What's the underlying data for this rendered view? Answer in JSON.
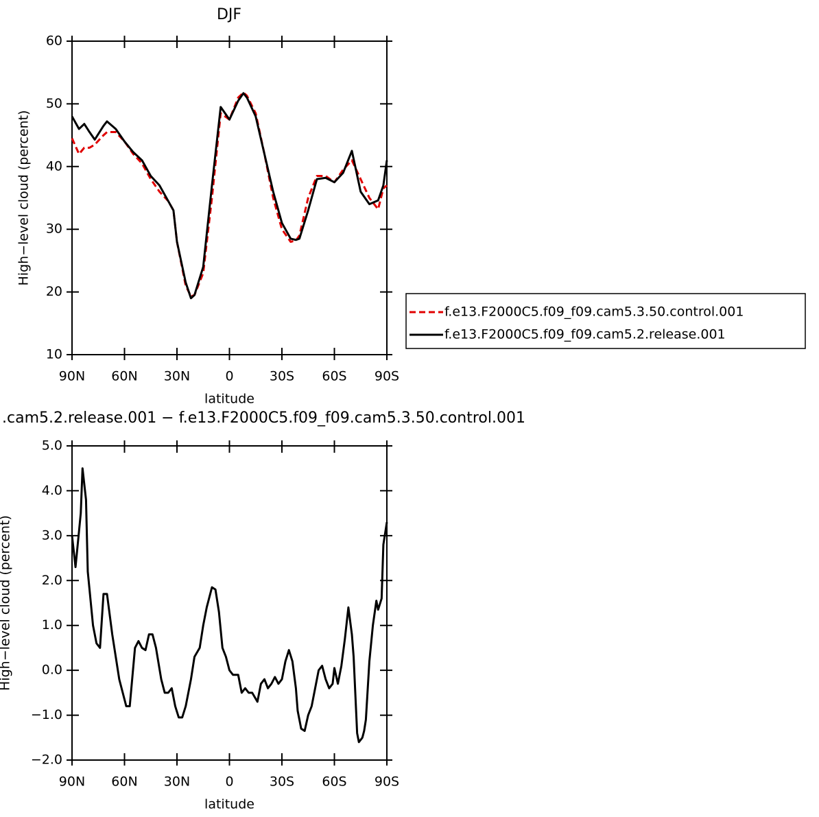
{
  "chart_data": [
    {
      "type": "line",
      "title": "DJF",
      "y_label": "High−level cloud (percent)",
      "x_label": "latitude",
      "xlim": [
        90,
        -90
      ],
      "xticks": [
        {
          "value": 90,
          "label": "90N"
        },
        {
          "value": 60,
          "label": "60N"
        },
        {
          "value": 30,
          "label": "30N"
        },
        0,
        {
          "value": -30,
          "label": "30S"
        },
        {
          "value": -60,
          "label": "60S"
        },
        {
          "value": -90,
          "label": "90S"
        }
      ],
      "ylim": [
        10,
        60
      ],
      "yticks": [
        10,
        20,
        30,
        40,
        50,
        60
      ],
      "legend": "right",
      "x": [
        90,
        86,
        83,
        80,
        77,
        72,
        70,
        65,
        60,
        55,
        50,
        45,
        40,
        35,
        32,
        30,
        25,
        22,
        20,
        15,
        10,
        5,
        0,
        -5,
        -8,
        -10,
        -15,
        -20,
        -25,
        -30,
        -35,
        -38,
        -40,
        -45,
        -50,
        -55,
        -60,
        -65,
        -70,
        -75,
        -80,
        -85,
        -88,
        -90
      ],
      "series": [
        {
          "name": "f.e13.F2000C5.f09_f09.cam5.3.50.control.001",
          "color": "#e00000",
          "dashed": true,
          "values": [
            44.5,
            42,
            43,
            43,
            43.5,
            45,
            45.5,
            45.5,
            44,
            42,
            40.5,
            38,
            36,
            34.5,
            33,
            28,
            21,
            19.3,
            19.5,
            23,
            35,
            48.5,
            47.5,
            51,
            51.8,
            51.3,
            48.5,
            42,
            35,
            30,
            28,
            28.2,
            29,
            35,
            38.5,
            38.5,
            37.5,
            39.5,
            41,
            38,
            35,
            33.2,
            36.5,
            37
          ]
        },
        {
          "name": "f.e13.F2000C5.f09_f09.cam5.2.release.001",
          "color": "#000000",
          "dashed": false,
          "values": [
            48,
            46,
            46.8,
            45.5,
            44.3,
            46.5,
            47.2,
            46,
            44,
            42.3,
            41,
            38.5,
            37,
            34.5,
            33,
            28,
            21.5,
            19,
            19.5,
            24,
            37,
            49.5,
            47.5,
            50.5,
            51.7,
            51,
            48,
            42,
            36,
            31,
            28.5,
            28.3,
            28.5,
            33,
            38,
            38.2,
            37.5,
            39,
            42.5,
            36,
            34,
            34.6,
            37,
            41
          ]
        }
      ]
    },
    {
      "type": "line",
      "title": ".cam5.2.release.001 − f.e13.F2000C5.f09_f09.cam5.3.50.control.001",
      "y_label": "High−level cloud (percent)",
      "x_label": "latitude",
      "xlim": [
        90,
        -90
      ],
      "xticks": [
        {
          "value": 90,
          "label": "90N"
        },
        {
          "value": 60,
          "label": "60N"
        },
        {
          "value": 30,
          "label": "30N"
        },
        0,
        {
          "value": -30,
          "label": "30S"
        },
        {
          "value": -60,
          "label": "60S"
        },
        {
          "value": -90,
          "label": "90S"
        }
      ],
      "ylim": [
        -2,
        5
      ],
      "yticks": [
        {
          "value": -2,
          "label": "−2.0"
        },
        {
          "value": -1,
          "label": "−1.0"
        },
        {
          "value": 0,
          "label": "0.0"
        },
        {
          "value": 1,
          "label": "1.0"
        },
        {
          "value": 2,
          "label": "2.0"
        },
        {
          "value": 3,
          "label": "3.0"
        },
        {
          "value": 4,
          "label": "4.0"
        },
        {
          "value": 5,
          "label": "5.0"
        }
      ],
      "color": "#000000",
      "x": [
        90,
        88,
        85,
        84,
        82,
        81,
        78,
        76,
        74,
        72,
        70,
        67,
        65,
        63,
        61,
        59,
        57,
        54,
        52,
        50,
        48,
        46,
        44,
        42,
        39,
        37,
        35,
        33,
        31,
        29,
        27,
        25,
        22,
        20,
        17,
        15,
        13,
        10,
        8,
        6,
        4,
        2,
        0,
        -2,
        -5,
        -7,
        -9,
        -11,
        -13,
        -16,
        -18,
        -20,
        -22,
        -24,
        -26,
        -28,
        -30,
        -32,
        -34,
        -36,
        -38,
        -39,
        -41,
        -43,
        -45,
        -47,
        -49,
        -51,
        -53,
        -55,
        -57,
        -59,
        -60,
        -62,
        -64,
        -66,
        -68,
        -70,
        -71,
        -73,
        -74,
        -76,
        -77,
        -78,
        -80,
        -82,
        -84,
        -85,
        -87,
        -88,
        -90
      ],
      "values": [
        3.0,
        2.3,
        3.5,
        4.5,
        3.8,
        2.2,
        1.0,
        0.6,
        0.5,
        1.7,
        1.7,
        0.8,
        0.3,
        -0.2,
        -0.5,
        -0.8,
        -0.8,
        0.5,
        0.65,
        0.5,
        0.45,
        0.8,
        0.8,
        0.5,
        -0.2,
        -0.5,
        -0.5,
        -0.4,
        -0.8,
        -1.05,
        -1.05,
        -0.8,
        -0.2,
        0.3,
        0.5,
        1.0,
        1.4,
        1.85,
        1.8,
        1.3,
        0.5,
        0.3,
        0,
        -0.1,
        -0.1,
        -0.5,
        -0.4,
        -0.5,
        -0.5,
        -0.7,
        -0.3,
        -0.2,
        -0.4,
        -0.3,
        -0.15,
        -0.3,
        -0.2,
        0.2,
        0.45,
        0.2,
        -0.4,
        -0.9,
        -1.3,
        -1.35,
        -1.0,
        -0.8,
        -0.4,
        0.0,
        0.1,
        -0.2,
        -0.4,
        -0.3,
        0.05,
        -0.3,
        0.1,
        0.7,
        1.4,
        0.8,
        0.3,
        -1.4,
        -1.6,
        -1.5,
        -1.35,
        -1.1,
        0.2,
        1.0,
        1.55,
        1.35,
        1.6,
        2.8,
        3.3
      ]
    }
  ]
}
